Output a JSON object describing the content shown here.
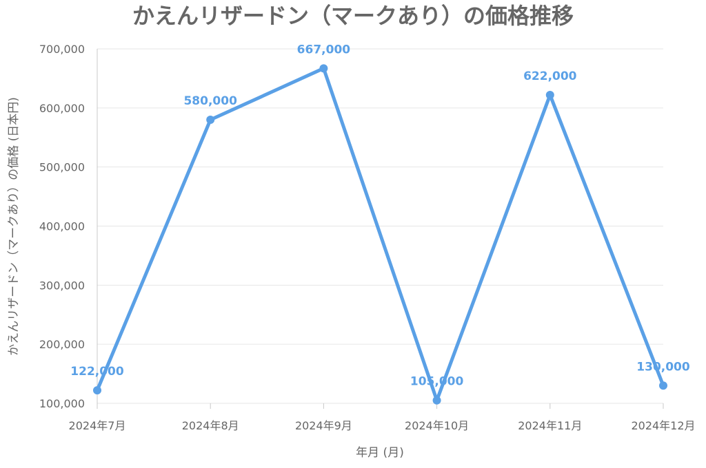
{
  "chart_data": {
    "type": "line",
    "title": "かえんリザードン（マークあり）の価格推移",
    "xlabel": "年月 (月)",
    "ylabel": "かえんリザードン（マークあり）の価格 (日本円)",
    "categories": [
      "2024年7月",
      "2024年8月",
      "2024年9月",
      "2024年10月",
      "2024年11月",
      "2024年12月"
    ],
    "series": [
      {
        "values": [
          122000,
          580000,
          667000,
          105000,
          622000,
          130000
        ],
        "value_labels": [
          "122,000",
          "580,000",
          "667,000",
          "105,000",
          "622,000",
          "130,000"
        ],
        "color": "#5aa0e6"
      }
    ],
    "ylim": [
      100000,
      700000
    ],
    "yticks": [
      100000,
      200000,
      300000,
      400000,
      500000,
      600000,
      700000
    ],
    "ytick_labels": [
      "100,000",
      "200,000",
      "300,000",
      "400,000",
      "500,000",
      "600,000",
      "700,000"
    ],
    "grid": true,
    "legend": "none"
  }
}
